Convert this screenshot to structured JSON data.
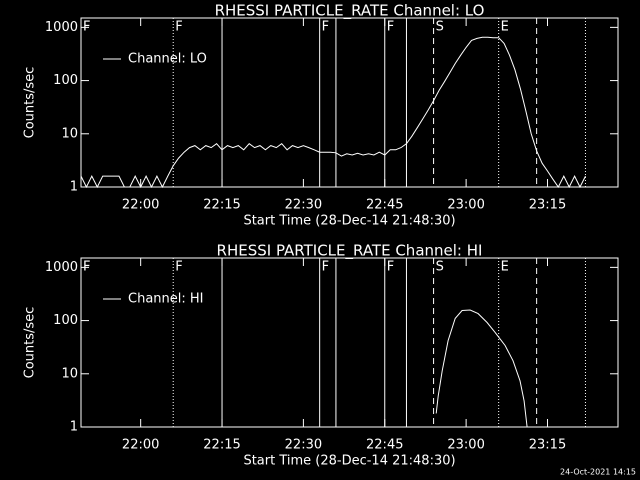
{
  "chart_data": [
    {
      "type": "line",
      "title": "RHESSI PARTICLE_RATE Channel: LO",
      "x_label": "Start Time (28-Dec-14 21:48:30)",
      "y_label": "Counts/sec",
      "log_y": true,
      "ylim": [
        1,
        1500
      ],
      "yticks": [
        1,
        10,
        100,
        1000
      ],
      "xlim": [
        "21:49",
        "23:28"
      ],
      "xticks": [
        "22:00",
        "22:15",
        "22:30",
        "22:45",
        "23:00",
        "23:15"
      ],
      "legend": "upper left",
      "markers": [
        {
          "x": "21:49",
          "style": "solid",
          "label": "F"
        },
        {
          "x": "22:06",
          "style": "dotted",
          "label": "F"
        },
        {
          "x": "22:15",
          "style": "solid"
        },
        {
          "x": "22:33",
          "style": "solid",
          "label": "F"
        },
        {
          "x": "22:36",
          "style": "solid"
        },
        {
          "x": "22:45",
          "style": "solid",
          "label": "F"
        },
        {
          "x": "22:49",
          "style": "solid"
        },
        {
          "x": "22:54",
          "style": "dashed",
          "label": "S"
        },
        {
          "x": "23:06",
          "style": "dotted",
          "label": "E"
        },
        {
          "x": "23:13",
          "style": "dashed"
        },
        {
          "x": "23:22",
          "style": "dotted"
        }
      ],
      "x": [
        "21:49",
        "21:50",
        "21:51",
        "21:52",
        "21:53",
        "21:54",
        "21:55",
        "21:56",
        "21:57",
        "21:58",
        "21:59",
        "22:00",
        "22:01",
        "22:02",
        "22:03",
        "22:04",
        "22:05",
        "22:06",
        "22:07",
        "22:08",
        "22:09",
        "22:10",
        "22:11",
        "22:12",
        "22:13",
        "22:14",
        "22:15",
        "22:16",
        "22:17",
        "22:18",
        "22:19",
        "22:20",
        "22:21",
        "22:22",
        "22:23",
        "22:24",
        "22:25",
        "22:26",
        "22:27",
        "22:28",
        "22:29",
        "22:30",
        "22:31",
        "22:32",
        "22:33",
        "22:34",
        "22:35",
        "22:36",
        "22:37",
        "22:38",
        "22:39",
        "22:40",
        "22:41",
        "22:42",
        "22:43",
        "22:44",
        "22:45",
        "22:46",
        "22:47",
        "22:48",
        "22:49",
        "22:50",
        "22:51",
        "22:52",
        "22:53",
        "22:54",
        "22:55",
        "22:56",
        "22:57",
        "22:58",
        "22:59",
        "23:00",
        "23:01",
        "23:02",
        "23:03",
        "23:04",
        "23:05",
        "23:06",
        "23:07",
        "23:08",
        "23:09",
        "23:10",
        "23:11",
        "23:12",
        "23:13",
        "23:14",
        "23:15",
        "23:16",
        "23:17",
        "23:18",
        "23:19",
        "23:20",
        "23:21",
        "23:22"
      ],
      "series": [
        {
          "name": "Channel: LO",
          "color": "#ffffff",
          "values": [
            1.6,
            1,
            1.6,
            1,
            1.6,
            1.6,
            1.6,
            1.6,
            1,
            1,
            1.6,
            1,
            1.6,
            1,
            1.6,
            1,
            1.6,
            2.5,
            3.5,
            4.5,
            5.5,
            6,
            5,
            6,
            5.5,
            6.5,
            5,
            6,
            5.5,
            6,
            5,
            6.5,
            5.5,
            6,
            5,
            6,
            5.5,
            6.5,
            5,
            6,
            5.5,
            6,
            5.5,
            5,
            4.5,
            4.5,
            4.5,
            4.4,
            3.8,
            4.2,
            4,
            4.3,
            4,
            4.2,
            4,
            4.5,
            4,
            5,
            5,
            5.5,
            6.5,
            9,
            13,
            19,
            28,
            42,
            65,
            95,
            140,
            210,
            300,
            420,
            570,
            620,
            650,
            650,
            640,
            640,
            500,
            300,
            160,
            70,
            27,
            10,
            4.8,
            2.8,
            2,
            1.4,
            1,
            1.6,
            1,
            1.6,
            1,
            1.6
          ]
        }
      ]
    },
    {
      "type": "line",
      "title": "RHESSI PARTICLE_RATE Channel: HI",
      "x_label": "Start Time (28-Dec-14 21:48:30)",
      "y_label": "Counts/sec",
      "log_y": true,
      "ylim": [
        1,
        1500
      ],
      "yticks": [
        1,
        10,
        100,
        1000
      ],
      "xlim": [
        "21:49",
        "23:28"
      ],
      "xticks": [
        "22:00",
        "22:15",
        "22:30",
        "22:45",
        "23:00",
        "23:15"
      ],
      "legend": "upper left",
      "markers": [
        {
          "x": "21:49",
          "style": "solid",
          "label": "F"
        },
        {
          "x": "22:06",
          "style": "dotted",
          "label": "F"
        },
        {
          "x": "22:15",
          "style": "solid"
        },
        {
          "x": "22:33",
          "style": "solid",
          "label": "F"
        },
        {
          "x": "22:36",
          "style": "solid"
        },
        {
          "x": "22:45",
          "style": "solid",
          "label": "F"
        },
        {
          "x": "22:49",
          "style": "solid"
        },
        {
          "x": "22:54",
          "style": "dashed",
          "label": "S"
        },
        {
          "x": "23:06",
          "style": "dotted",
          "label": "E"
        },
        {
          "x": "23:13",
          "style": "dashed"
        },
        {
          "x": "23:22",
          "style": "dotted"
        }
      ],
      "x": [
        "22:54:29",
        "22:54:51",
        "22:55:35",
        "22:56:41",
        "22:57:59",
        "22:59:16",
        "23:00:44",
        "23:02:13",
        "23:03:52",
        "23:05:20",
        "23:07:11",
        "23:08:39",
        "23:09:56",
        "23:10:41",
        "23:11:14"
      ],
      "series": [
        {
          "name": "Channel: HI",
          "color": "#ffffff",
          "values": [
            1.8,
            3.8,
            11.4,
            42,
            110,
            155,
            158,
            135,
            92,
            60,
            34,
            17.6,
            7.4,
            3.1,
            1
          ]
        }
      ]
    }
  ],
  "footer": "24-Oct-2021 14:15"
}
